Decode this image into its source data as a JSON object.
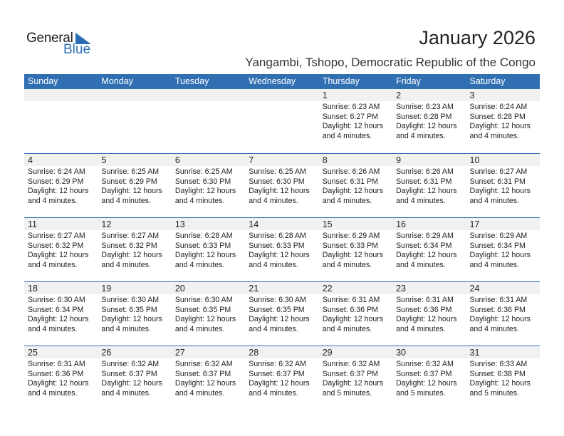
{
  "logo": {
    "line1": "General",
    "line2": "Blue"
  },
  "header": {
    "title": "January 2026",
    "subtitle": "Yangambi, Tshopo, Democratic Republic of the Congo"
  },
  "colors": {
    "accent": "#2f6fb2",
    "day_bar": "#f1f1f1"
  },
  "weekdays": [
    "Sunday",
    "Monday",
    "Tuesday",
    "Wednesday",
    "Thursday",
    "Friday",
    "Saturday"
  ],
  "weeks": [
    [
      null,
      null,
      null,
      null,
      {
        "day": "1",
        "sunrise": "Sunrise: 6:23 AM",
        "sunset": "Sunset: 6:27 PM",
        "daylight1": "Daylight: 12 hours",
        "daylight2": "and 4 minutes."
      },
      {
        "day": "2",
        "sunrise": "Sunrise: 6:23 AM",
        "sunset": "Sunset: 6:28 PM",
        "daylight1": "Daylight: 12 hours",
        "daylight2": "and 4 minutes."
      },
      {
        "day": "3",
        "sunrise": "Sunrise: 6:24 AM",
        "sunset": "Sunset: 6:28 PM",
        "daylight1": "Daylight: 12 hours",
        "daylight2": "and 4 minutes."
      }
    ],
    [
      {
        "day": "4",
        "sunrise": "Sunrise: 6:24 AM",
        "sunset": "Sunset: 6:29 PM",
        "daylight1": "Daylight: 12 hours",
        "daylight2": "and 4 minutes."
      },
      {
        "day": "5",
        "sunrise": "Sunrise: 6:25 AM",
        "sunset": "Sunset: 6:29 PM",
        "daylight1": "Daylight: 12 hours",
        "daylight2": "and 4 minutes."
      },
      {
        "day": "6",
        "sunrise": "Sunrise: 6:25 AM",
        "sunset": "Sunset: 6:30 PM",
        "daylight1": "Daylight: 12 hours",
        "daylight2": "and 4 minutes."
      },
      {
        "day": "7",
        "sunrise": "Sunrise: 6:25 AM",
        "sunset": "Sunset: 6:30 PM",
        "daylight1": "Daylight: 12 hours",
        "daylight2": "and 4 minutes."
      },
      {
        "day": "8",
        "sunrise": "Sunrise: 6:26 AM",
        "sunset": "Sunset: 6:31 PM",
        "daylight1": "Daylight: 12 hours",
        "daylight2": "and 4 minutes."
      },
      {
        "day": "9",
        "sunrise": "Sunrise: 6:26 AM",
        "sunset": "Sunset: 6:31 PM",
        "daylight1": "Daylight: 12 hours",
        "daylight2": "and 4 minutes."
      },
      {
        "day": "10",
        "sunrise": "Sunrise: 6:27 AM",
        "sunset": "Sunset: 6:31 PM",
        "daylight1": "Daylight: 12 hours",
        "daylight2": "and 4 minutes."
      }
    ],
    [
      {
        "day": "11",
        "sunrise": "Sunrise: 6:27 AM",
        "sunset": "Sunset: 6:32 PM",
        "daylight1": "Daylight: 12 hours",
        "daylight2": "and 4 minutes."
      },
      {
        "day": "12",
        "sunrise": "Sunrise: 6:27 AM",
        "sunset": "Sunset: 6:32 PM",
        "daylight1": "Daylight: 12 hours",
        "daylight2": "and 4 minutes."
      },
      {
        "day": "13",
        "sunrise": "Sunrise: 6:28 AM",
        "sunset": "Sunset: 6:33 PM",
        "daylight1": "Daylight: 12 hours",
        "daylight2": "and 4 minutes."
      },
      {
        "day": "14",
        "sunrise": "Sunrise: 6:28 AM",
        "sunset": "Sunset: 6:33 PM",
        "daylight1": "Daylight: 12 hours",
        "daylight2": "and 4 minutes."
      },
      {
        "day": "15",
        "sunrise": "Sunrise: 6:29 AM",
        "sunset": "Sunset: 6:33 PM",
        "daylight1": "Daylight: 12 hours",
        "daylight2": "and 4 minutes."
      },
      {
        "day": "16",
        "sunrise": "Sunrise: 6:29 AM",
        "sunset": "Sunset: 6:34 PM",
        "daylight1": "Daylight: 12 hours",
        "daylight2": "and 4 minutes."
      },
      {
        "day": "17",
        "sunrise": "Sunrise: 6:29 AM",
        "sunset": "Sunset: 6:34 PM",
        "daylight1": "Daylight: 12 hours",
        "daylight2": "and 4 minutes."
      }
    ],
    [
      {
        "day": "18",
        "sunrise": "Sunrise: 6:30 AM",
        "sunset": "Sunset: 6:34 PM",
        "daylight1": "Daylight: 12 hours",
        "daylight2": "and 4 minutes."
      },
      {
        "day": "19",
        "sunrise": "Sunrise: 6:30 AM",
        "sunset": "Sunset: 6:35 PM",
        "daylight1": "Daylight: 12 hours",
        "daylight2": "and 4 minutes."
      },
      {
        "day": "20",
        "sunrise": "Sunrise: 6:30 AM",
        "sunset": "Sunset: 6:35 PM",
        "daylight1": "Daylight: 12 hours",
        "daylight2": "and 4 minutes."
      },
      {
        "day": "21",
        "sunrise": "Sunrise: 6:30 AM",
        "sunset": "Sunset: 6:35 PM",
        "daylight1": "Daylight: 12 hours",
        "daylight2": "and 4 minutes."
      },
      {
        "day": "22",
        "sunrise": "Sunrise: 6:31 AM",
        "sunset": "Sunset: 6:36 PM",
        "daylight1": "Daylight: 12 hours",
        "daylight2": "and 4 minutes."
      },
      {
        "day": "23",
        "sunrise": "Sunrise: 6:31 AM",
        "sunset": "Sunset: 6:36 PM",
        "daylight1": "Daylight: 12 hours",
        "daylight2": "and 4 minutes."
      },
      {
        "day": "24",
        "sunrise": "Sunrise: 6:31 AM",
        "sunset": "Sunset: 6:36 PM",
        "daylight1": "Daylight: 12 hours",
        "daylight2": "and 4 minutes."
      }
    ],
    [
      {
        "day": "25",
        "sunrise": "Sunrise: 6:31 AM",
        "sunset": "Sunset: 6:36 PM",
        "daylight1": "Daylight: 12 hours",
        "daylight2": "and 4 minutes."
      },
      {
        "day": "26",
        "sunrise": "Sunrise: 6:32 AM",
        "sunset": "Sunset: 6:37 PM",
        "daylight1": "Daylight: 12 hours",
        "daylight2": "and 4 minutes."
      },
      {
        "day": "27",
        "sunrise": "Sunrise: 6:32 AM",
        "sunset": "Sunset: 6:37 PM",
        "daylight1": "Daylight: 12 hours",
        "daylight2": "and 4 minutes."
      },
      {
        "day": "28",
        "sunrise": "Sunrise: 6:32 AM",
        "sunset": "Sunset: 6:37 PM",
        "daylight1": "Daylight: 12 hours",
        "daylight2": "and 4 minutes."
      },
      {
        "day": "29",
        "sunrise": "Sunrise: 6:32 AM",
        "sunset": "Sunset: 6:37 PM",
        "daylight1": "Daylight: 12 hours",
        "daylight2": "and 5 minutes."
      },
      {
        "day": "30",
        "sunrise": "Sunrise: 6:32 AM",
        "sunset": "Sunset: 6:37 PM",
        "daylight1": "Daylight: 12 hours",
        "daylight2": "and 5 minutes."
      },
      {
        "day": "31",
        "sunrise": "Sunrise: 6:33 AM",
        "sunset": "Sunset: 6:38 PM",
        "daylight1": "Daylight: 12 hours",
        "daylight2": "and 5 minutes."
      }
    ]
  ]
}
